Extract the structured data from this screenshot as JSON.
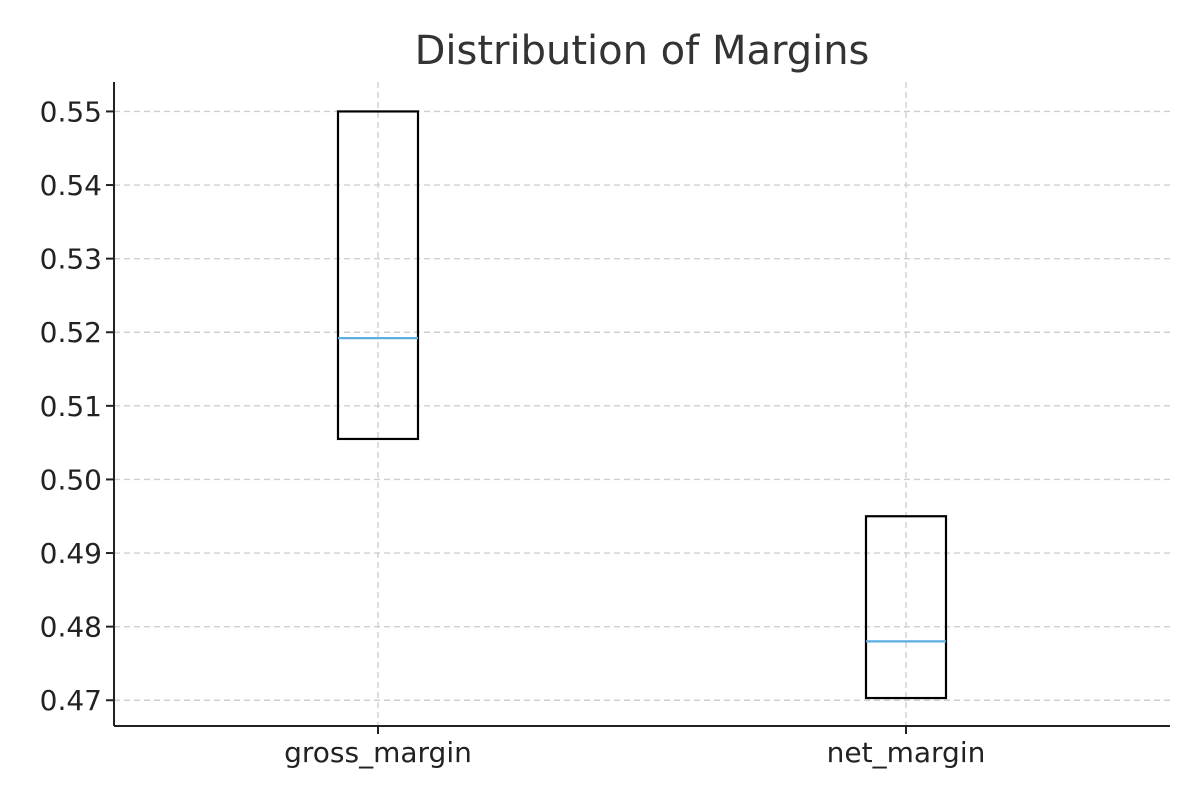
{
  "chart_data": {
    "type": "box",
    "title": "Distribution of Margins",
    "xlabel": "",
    "ylabel": "",
    "categories": [
      "gross_margin",
      "net_margin"
    ],
    "boxes": [
      {
        "category": "gross_margin",
        "q1": 0.5055,
        "median": 0.5192,
        "q3": 0.55
      },
      {
        "category": "net_margin",
        "q1": 0.4703,
        "median": 0.478,
        "q3": 0.495
      }
    ],
    "y_ticks": [
      "0.47",
      "0.48",
      "0.49",
      "0.50",
      "0.51",
      "0.52",
      "0.53",
      "0.54",
      "0.55"
    ],
    "ylim": [
      0.4665,
      0.554
    ],
    "grid": true,
    "colors": {
      "box": "#000000",
      "median": "#5aaee0",
      "grid": "#cfcfcf",
      "axis": "#222222",
      "title": "#333333"
    }
  }
}
